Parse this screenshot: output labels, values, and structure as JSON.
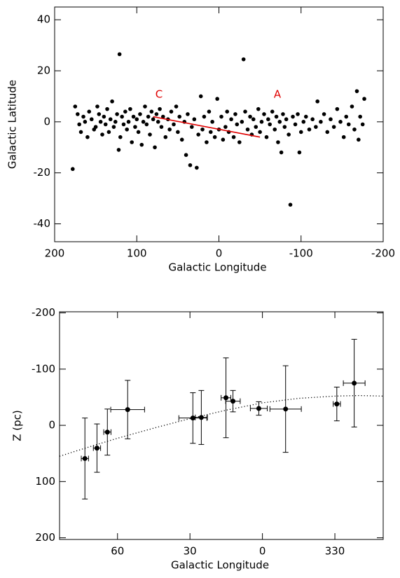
{
  "chart_data": [
    {
      "type": "scatter",
      "xlabel": "Galactic Longitude",
      "ylabel": "Galactic Latitude",
      "xlim": [
        200,
        -200
      ],
      "ylim": [
        -47,
        45
      ],
      "xticks": [
        200,
        100,
        0,
        -100,
        -200
      ],
      "yticks": [
        -40,
        -20,
        0,
        20,
        40
      ],
      "series": [
        {
          "color": "#000000",
          "x": [
            175,
            172,
            170,
            168,
            165,
            163,
            160,
            158,
            155,
            152,
            150,
            148,
            146,
            144,
            142,
            140,
            138,
            136,
            134,
            132,
            130,
            128,
            126,
            124,
            122,
            120,
            118,
            116,
            114,
            112,
            110,
            108,
            106,
            104,
            102,
            100,
            98,
            96,
            94,
            92,
            90,
            88,
            86,
            84,
            82,
            80,
            78,
            76,
            74,
            72,
            70,
            68,
            65,
            62,
            60,
            58,
            55,
            52,
            50,
            48,
            45,
            42,
            40,
            38,
            35,
            33,
            30,
            27,
            25,
            22,
            20,
            18,
            15,
            12,
            10,
            8,
            5,
            2,
            0,
            -3,
            -5,
            -8,
            -10,
            -12,
            -15,
            -18,
            -20,
            -22,
            -25,
            -28,
            -30,
            -32,
            -35,
            -38,
            -40,
            -42,
            -45,
            -48,
            -50,
            -52,
            -55,
            -58,
            -60,
            -62,
            -65,
            -68,
            -70,
            -72,
            -74,
            -76,
            -78,
            -80,
            -82,
            -85,
            -87,
            -90,
            -93,
            -96,
            -98,
            -100,
            -103,
            -106,
            -110,
            -114,
            -118,
            -120,
            -124,
            -128,
            -132,
            -136,
            -140,
            -144,
            -148,
            -152,
            -155,
            -158,
            -162,
            -165,
            -168,
            -170,
            -172,
            -175,
            -177,
            178,
            121
          ],
          "y": [
            6,
            3,
            -1,
            -4,
            2,
            0,
            -6,
            4,
            1,
            -3,
            -2,
            6,
            3,
            0,
            -5,
            2,
            -1,
            5,
            -4,
            1,
            8,
            -2,
            0,
            3,
            -11,
            -6,
            2,
            -1,
            4,
            -3,
            0,
            5,
            -8,
            2,
            -2,
            1,
            -4,
            3,
            -9,
            0,
            6,
            -1,
            2,
            -5,
            4,
            1,
            -10,
            3,
            0,
            5,
            -2,
            2,
            -6,
            1,
            -3,
            4,
            -1,
            6,
            -4,
            2,
            -7,
            0,
            -13,
            3,
            -17,
            -2,
            1,
            -18,
            -5,
            10,
            -3,
            2,
            -8,
            4,
            -4,
            0,
            -6,
            9,
            -3,
            2,
            -7,
            -2,
            4,
            -4,
            1,
            -6,
            3,
            -1,
            -8,
            0,
            24.5,
            4,
            -3,
            2,
            -5,
            1,
            -2,
            5,
            -4,
            0,
            3,
            -6,
            1,
            -1,
            4,
            -3,
            2,
            -8,
            0,
            -12,
            3,
            -2,
            1,
            -5,
            -32.5,
            2,
            -1,
            3,
            -12,
            -4,
            0,
            2,
            -3,
            1,
            -2,
            8,
            0,
            3,
            -4,
            1,
            -2,
            5,
            0,
            -6,
            2,
            -1,
            6,
            -3,
            12,
            -7,
            2,
            -1,
            9,
            -18.5,
            26.5
          ]
        }
      ],
      "fit_line": {
        "x": [
          80,
          -50
        ],
        "y": [
          2,
          -6
        ],
        "color": "#e00000"
      },
      "annotations": [
        "C",
        "A"
      ]
    },
    {
      "type": "errorbar",
      "xlabel": "Galactic Longitude",
      "ylabel": "Z (pc)",
      "xlim": [
        84,
        -50
      ],
      "ylim": [
        203,
        -202
      ],
      "xticks": [
        60,
        30,
        0,
        {
          "value": -30,
          "label": "330"
        }
      ],
      "yticks": [
        -200,
        -100,
        0,
        100,
        200
      ],
      "color": "#000000",
      "x": [
        73.5,
        68.5,
        64.2,
        55.8,
        28.8,
        25.3,
        15.1,
        12.2,
        1.5,
        -9.6,
        -30.8,
        -38
      ],
      "y": [
        59,
        40.5,
        12,
        -28,
        -13,
        -14,
        -49,
        -43,
        -30,
        -29,
        -38,
        -75
      ],
      "xerr": [
        1.5,
        1.5,
        1.5,
        7,
        5.8,
        2.5,
        2,
        3,
        3.5,
        6.5,
        1.5,
        4.5
      ],
      "yerr": [
        72,
        43,
        41,
        52,
        45,
        48,
        71,
        19,
        12,
        77,
        30,
        78
      ],
      "curve": {
        "x": [
          84,
          70,
          60,
          45,
          30,
          15,
          0,
          -15,
          -30,
          -40,
          -50
        ],
        "y": [
          55,
          36,
          23,
          5,
          -12,
          -27,
          -40,
          -48,
          -52,
          -53,
          -52
        ],
        "color": "#000000"
      }
    }
  ]
}
